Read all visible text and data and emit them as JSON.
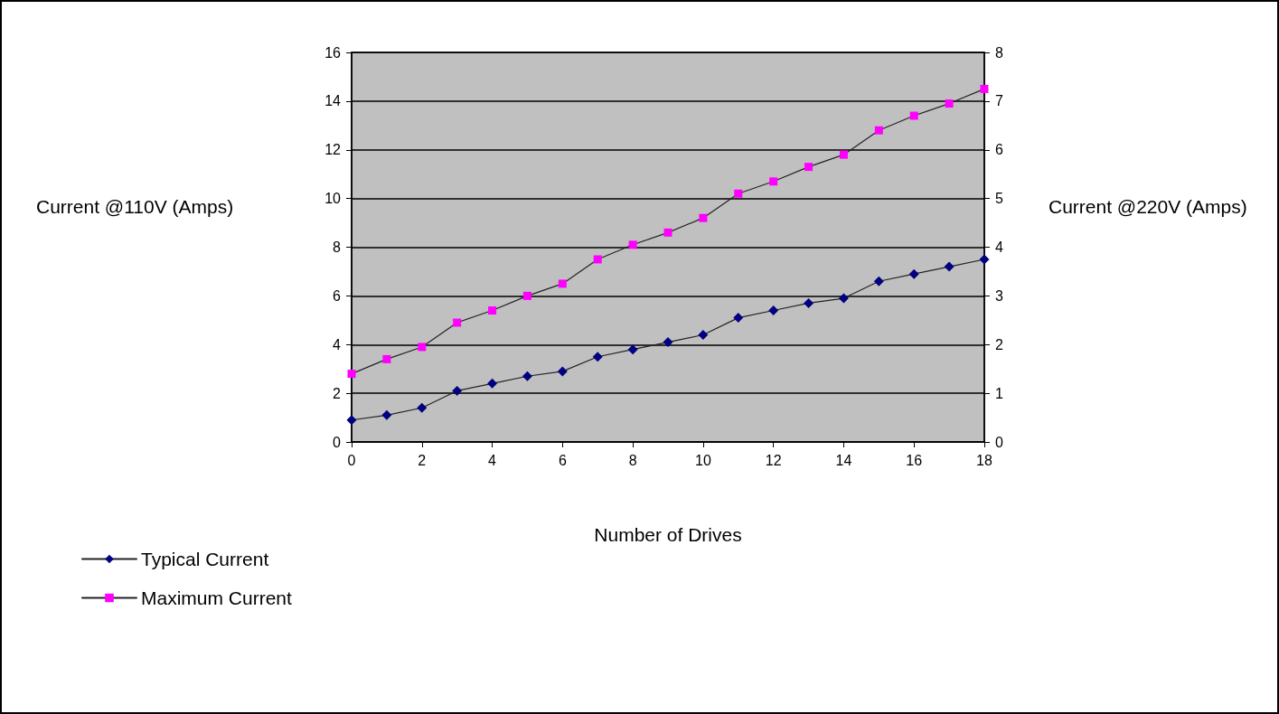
{
  "chart_data": {
    "type": "line",
    "xlabel": "Number of Drives",
    "ylabel": "Current @110V (Amps)",
    "y2label": "Current @220V (Amps)",
    "x": [
      0,
      1,
      2,
      3,
      4,
      5,
      6,
      7,
      8,
      9,
      10,
      11,
      12,
      13,
      14,
      15,
      16,
      17,
      18
    ],
    "series": [
      {
        "name": "Typical Current",
        "color": "#000080",
        "marker": "diamond",
        "values": [
          0.9,
          1.1,
          1.4,
          2.1,
          2.4,
          2.7,
          2.9,
          3.5,
          3.8,
          4.1,
          4.4,
          5.1,
          5.4,
          5.7,
          5.9,
          6.6,
          6.9,
          7.2,
          7.5
        ]
      },
      {
        "name": "Maximum Current",
        "color": "#ff00ff",
        "marker": "square",
        "values": [
          2.8,
          3.4,
          3.9,
          4.9,
          5.4,
          6.0,
          6.5,
          7.5,
          8.1,
          8.6,
          9.2,
          10.2,
          10.7,
          11.3,
          11.8,
          12.8,
          13.4,
          13.9,
          14.5
        ]
      }
    ],
    "xlim": [
      0,
      18
    ],
    "xticks": [
      0,
      2,
      4,
      6,
      8,
      10,
      12,
      14,
      16,
      18
    ],
    "ylim": [
      0,
      16
    ],
    "yticks": [
      0,
      2,
      4,
      6,
      8,
      10,
      12,
      14,
      16
    ],
    "y2lim": [
      0,
      8
    ],
    "y2ticks": [
      0,
      1,
      2,
      3,
      4,
      5,
      6,
      7,
      8
    ],
    "grid": "y",
    "legend": "bottom left",
    "line_style": "solid"
  }
}
